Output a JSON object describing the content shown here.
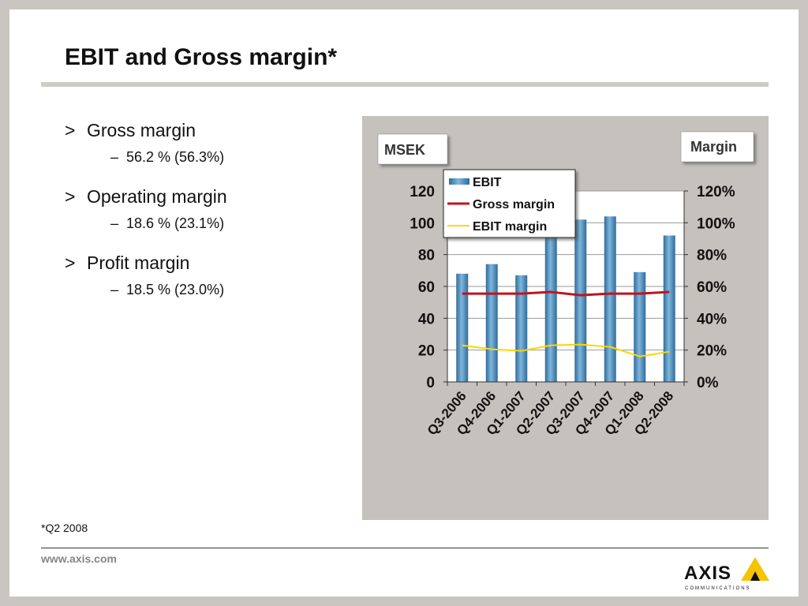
{
  "slide": {
    "title": "EBIT and Gross margin*",
    "bullets": [
      {
        "marker": ">",
        "label": "Gross margin",
        "sub_marker": "–",
        "sub": "56.2 % (56.3%)"
      },
      {
        "marker": ">",
        "label": "Operating margin",
        "sub_marker": "–",
        "sub": "18.6 % (23.1%)"
      },
      {
        "marker": ">",
        "label": "Profit margin",
        "sub_marker": "–",
        "sub": "18.5 % (23.0%)"
      }
    ],
    "footnote": "*Q2 2008",
    "url": "www.axis.com",
    "logo": {
      "name": "AXIS",
      "tagline": "COMMUNICATIONS",
      "accent": "#f5c400"
    }
  },
  "chart_data": {
    "type": "bar",
    "left_unit_label": "MSEK",
    "right_unit_label": "Margin",
    "categories": [
      "Q3-2006",
      "Q4-2006",
      "Q1-2007",
      "Q2-2007",
      "Q3-2007",
      "Q4-2007",
      "Q1-2008",
      "Q2-2008"
    ],
    "yticks_left": [
      "0",
      "20",
      "40",
      "60",
      "80",
      "100",
      "120"
    ],
    "yticks_right": [
      "0%",
      "20%",
      "40%",
      "60%",
      "80%",
      "100%",
      "120%"
    ],
    "ylim_left": [
      0,
      120
    ],
    "ylim_right": [
      0,
      120
    ],
    "series": [
      {
        "name": "EBIT",
        "kind": "bar",
        "axis": "left",
        "color": "#4a8ab8",
        "values": [
          68,
          74,
          67,
          91,
          102,
          104,
          69,
          92
        ]
      },
      {
        "name": "Gross margin",
        "kind": "line",
        "axis": "right",
        "color": "#c0141c",
        "values": [
          55.5,
          55.5,
          55.5,
          56.5,
          54.5,
          55.5,
          55.5,
          56.5
        ]
      },
      {
        "name": "EBIT margin",
        "kind": "line",
        "axis": "right",
        "color": "#ffd600",
        "values": [
          23,
          20.5,
          19.5,
          23,
          23.5,
          22,
          16,
          19
        ]
      }
    ],
    "legend_position": "top-left"
  }
}
